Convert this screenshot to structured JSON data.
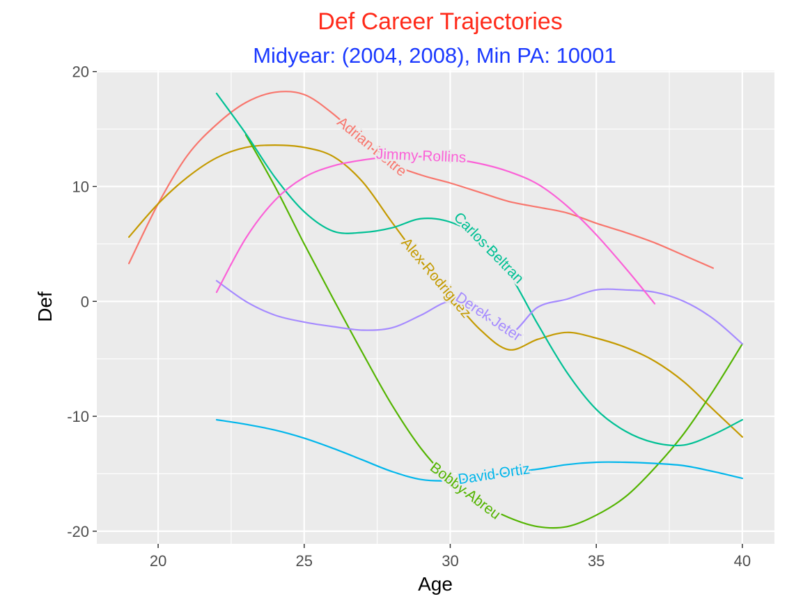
{
  "chart_data": {
    "type": "line",
    "title": "Def Career Trajectories",
    "subtitle": "Midyear: (2004, 2008), Min PA: 10001",
    "xlabel": "Age",
    "ylabel": "Def",
    "xlim": [
      17.9,
      41.1
    ],
    "ylim": [
      -21.1,
      20.1
    ],
    "x_ticks": [
      20,
      25,
      30,
      35,
      40
    ],
    "y_ticks": [
      -20,
      -10,
      0,
      10,
      20
    ],
    "grid": true,
    "legend": "none (direct labels on curves)",
    "series": [
      {
        "name": "Adrian Beltre",
        "color": "#F8766D",
        "points": [
          [
            19,
            3.3
          ],
          [
            20,
            8.5
          ],
          [
            21,
            12.7
          ],
          [
            22,
            15.4
          ],
          [
            23,
            17.3
          ],
          [
            24,
            18.2
          ],
          [
            25,
            18.0
          ],
          [
            26,
            16.3
          ],
          [
            27,
            14.0
          ],
          [
            28,
            12.0
          ],
          [
            29,
            11.0
          ],
          [
            30,
            10.3
          ],
          [
            31,
            9.5
          ],
          [
            32,
            8.7
          ],
          [
            33,
            8.2
          ],
          [
            34,
            7.7
          ],
          [
            35,
            6.8
          ],
          [
            36,
            6.0
          ],
          [
            37,
            5.1
          ],
          [
            38,
            4.0
          ],
          [
            39,
            2.9
          ]
        ],
        "label_x": 27.3
      },
      {
        "name": "Alex Rodriguez",
        "color": "#C49A00",
        "points": [
          [
            19,
            5.6
          ],
          [
            20,
            8.5
          ],
          [
            21,
            10.8
          ],
          [
            22,
            12.5
          ],
          [
            23,
            13.4
          ],
          [
            24,
            13.6
          ],
          [
            25,
            13.4
          ],
          [
            26,
            12.6
          ],
          [
            27,
            10.4
          ],
          [
            28,
            6.9
          ],
          [
            29,
            3.5
          ],
          [
            30,
            0.5
          ],
          [
            31,
            -2.4
          ],
          [
            32,
            -4.2
          ],
          [
            33,
            -3.3
          ],
          [
            34,
            -2.7
          ],
          [
            35,
            -3.2
          ],
          [
            36,
            -4.0
          ],
          [
            37,
            -5.2
          ],
          [
            38,
            -7.0
          ],
          [
            39,
            -9.4
          ],
          [
            40,
            -11.8
          ]
        ],
        "label_x": 29.5
      },
      {
        "name": "Bobby Abreu",
        "color": "#53B400",
        "points": [
          [
            23,
            14.5
          ],
          [
            24,
            10.0
          ],
          [
            25,
            5.0
          ],
          [
            26,
            0.2
          ],
          [
            27,
            -4.5
          ],
          [
            28,
            -9.0
          ],
          [
            29,
            -12.8
          ],
          [
            30,
            -15.6
          ],
          [
            31,
            -17.5
          ],
          [
            32,
            -18.8
          ],
          [
            33,
            -19.6
          ],
          [
            34,
            -19.6
          ],
          [
            35,
            -18.6
          ],
          [
            36,
            -17.0
          ],
          [
            37,
            -14.5
          ],
          [
            38,
            -11.5
          ],
          [
            39,
            -7.8
          ],
          [
            40,
            -3.7
          ]
        ],
        "label_x": 30.5
      },
      {
        "name": "Carlos Beltran",
        "color": "#00C094",
        "points": [
          [
            22,
            18.1
          ],
          [
            23,
            14.6
          ],
          [
            24,
            10.8
          ],
          [
            25,
            7.8
          ],
          [
            26,
            6.1
          ],
          [
            27,
            6.0
          ],
          [
            28,
            6.4
          ],
          [
            29,
            7.2
          ],
          [
            30,
            6.9
          ],
          [
            31,
            5.5
          ],
          [
            32,
            2.5
          ],
          [
            33,
            -2.0
          ],
          [
            34,
            -6.2
          ],
          [
            35,
            -9.4
          ],
          [
            36,
            -11.3
          ],
          [
            37,
            -12.3
          ],
          [
            38,
            -12.5
          ],
          [
            39,
            -11.6
          ],
          [
            40,
            -10.3
          ]
        ],
        "label_x": 31.3
      },
      {
        "name": "David Ortiz",
        "color": "#00B6EB",
        "points": [
          [
            22,
            -10.3
          ],
          [
            23,
            -10.7
          ],
          [
            24,
            -11.2
          ],
          [
            25,
            -11.9
          ],
          [
            26,
            -12.8
          ],
          [
            27,
            -13.8
          ],
          [
            28,
            -14.8
          ],
          [
            29,
            -15.5
          ],
          [
            30,
            -15.6
          ],
          [
            31,
            -15.3
          ],
          [
            32,
            -14.9
          ],
          [
            33,
            -14.6
          ],
          [
            34,
            -14.2
          ],
          [
            35,
            -14.0
          ],
          [
            36,
            -14.0
          ],
          [
            37,
            -14.1
          ],
          [
            38,
            -14.3
          ],
          [
            39,
            -14.8
          ],
          [
            40,
            -15.4
          ]
        ],
        "label_x": 31.5
      },
      {
        "name": "Derek Jeter",
        "color": "#A58AFF",
        "points": [
          [
            22,
            1.8
          ],
          [
            23,
            0.0
          ],
          [
            24,
            -1.2
          ],
          [
            25,
            -1.8
          ],
          [
            26,
            -2.2
          ],
          [
            27,
            -2.5
          ],
          [
            28,
            -2.3
          ],
          [
            29,
            -1.2
          ],
          [
            30,
            0.0
          ],
          [
            31,
            -0.8
          ],
          [
            32,
            -2.8
          ],
          [
            33,
            -0.5
          ],
          [
            34,
            0.2
          ],
          [
            35,
            1.0
          ],
          [
            36,
            1.0
          ],
          [
            37,
            0.8
          ],
          [
            38,
            0.0
          ],
          [
            39,
            -1.5
          ],
          [
            40,
            -3.7
          ]
        ],
        "label_x": 31.3
      },
      {
        "name": "Jimmy Rollins",
        "color": "#FB61D7",
        "points": [
          [
            22,
            0.8
          ],
          [
            23,
            5.5
          ],
          [
            24,
            8.8
          ],
          [
            25,
            10.8
          ],
          [
            26,
            11.8
          ],
          [
            27,
            12.3
          ],
          [
            28,
            12.6
          ],
          [
            29,
            12.6
          ],
          [
            30,
            12.4
          ],
          [
            31,
            12.0
          ],
          [
            32,
            11.3
          ],
          [
            33,
            10.2
          ],
          [
            34,
            8.3
          ],
          [
            35,
            5.8
          ],
          [
            36,
            2.9
          ],
          [
            37,
            -0.2
          ]
        ],
        "label_x": 29.0
      }
    ]
  }
}
